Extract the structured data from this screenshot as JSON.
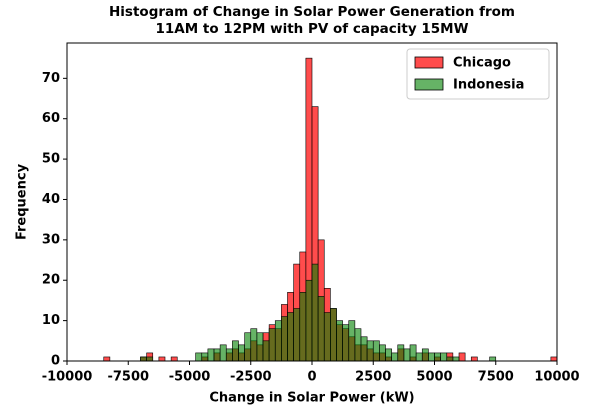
{
  "chart_data": {
    "type": "histogram",
    "title": [
      "Histogram of Change in Solar Power Generation from",
      "11AM to 12PM with PV of capacity 15MW"
    ],
    "xlabel": "Change in Solar Power (kW)",
    "ylabel": "Frequency",
    "bins": [
      -10000,
      -9750,
      -9500,
      -9250,
      -9000,
      -8750,
      -8500,
      -8250,
      -8000,
      -7750,
      -7500,
      -7250,
      -7000,
      -6750,
      -6500,
      -6250,
      -6000,
      -5750,
      -5500,
      -5250,
      -5000,
      -4750,
      -4500,
      -4250,
      -4000,
      -3750,
      -3500,
      -3250,
      -3000,
      -2750,
      -2500,
      -2250,
      -2000,
      -1750,
      -1500,
      -1250,
      -1000,
      -750,
      -500,
      -250,
      0,
      250,
      500,
      750,
      1000,
      1250,
      1500,
      1750,
      2000,
      2250,
      2500,
      2750,
      3000,
      3250,
      3500,
      3750,
      4000,
      4250,
      4500,
      4750,
      5000,
      5250,
      5500,
      5750,
      6000,
      6250,
      6500,
      6750,
      7000,
      7250,
      7500,
      7750,
      8000,
      8250,
      8500,
      8750,
      9000,
      9250,
      9500,
      9750,
      10000
    ],
    "series": [
      {
        "name": "Chicago",
        "color": "#ff0000",
        "values": [
          0,
          0,
          0,
          0,
          0,
          0,
          1,
          0,
          0,
          0,
          0,
          0,
          1,
          2,
          0,
          1,
          0,
          1,
          0,
          0,
          0,
          0,
          1,
          0,
          2,
          0,
          2,
          3,
          2,
          3,
          5,
          4,
          7,
          9,
          8,
          14,
          17,
          24,
          27,
          75,
          63,
          30,
          18,
          13,
          9,
          8,
          6,
          4,
          4,
          3,
          2,
          2,
          1,
          0,
          3,
          0,
          1,
          0,
          2,
          0,
          1,
          0,
          2,
          0,
          2,
          0,
          1,
          0,
          0,
          0,
          0,
          0,
          0,
          0,
          0,
          0,
          0,
          0,
          0,
          1
        ]
      },
      {
        "name": "Indonesia",
        "color": "#008000",
        "values": [
          0,
          0,
          0,
          0,
          0,
          0,
          0,
          0,
          0,
          0,
          0,
          0,
          1,
          1,
          0,
          0,
          0,
          0,
          0,
          0,
          0,
          2,
          2,
          3,
          3,
          4,
          3,
          5,
          4,
          7,
          8,
          7,
          5,
          8,
          10,
          11,
          12,
          13,
          17,
          20,
          24,
          16,
          12,
          13,
          10,
          9,
          10,
          8,
          6,
          5,
          5,
          4,
          3,
          2,
          4,
          3,
          4,
          2,
          3,
          2,
          2,
          2,
          1,
          1,
          0,
          0,
          0,
          0,
          0,
          1,
          0,
          0,
          0,
          0,
          0,
          0,
          0,
          0,
          0,
          0
        ]
      }
    ],
    "xlim": [
      -10000,
      10000
    ],
    "xticks": [
      -10000,
      -7500,
      -5000,
      -2500,
      0,
      2500,
      5000,
      7500,
      10000
    ],
    "ylim": [
      0,
      78.75
    ],
    "yticks": [
      0,
      10,
      20,
      30,
      40,
      50,
      60,
      70
    ],
    "legend": "upper right"
  }
}
